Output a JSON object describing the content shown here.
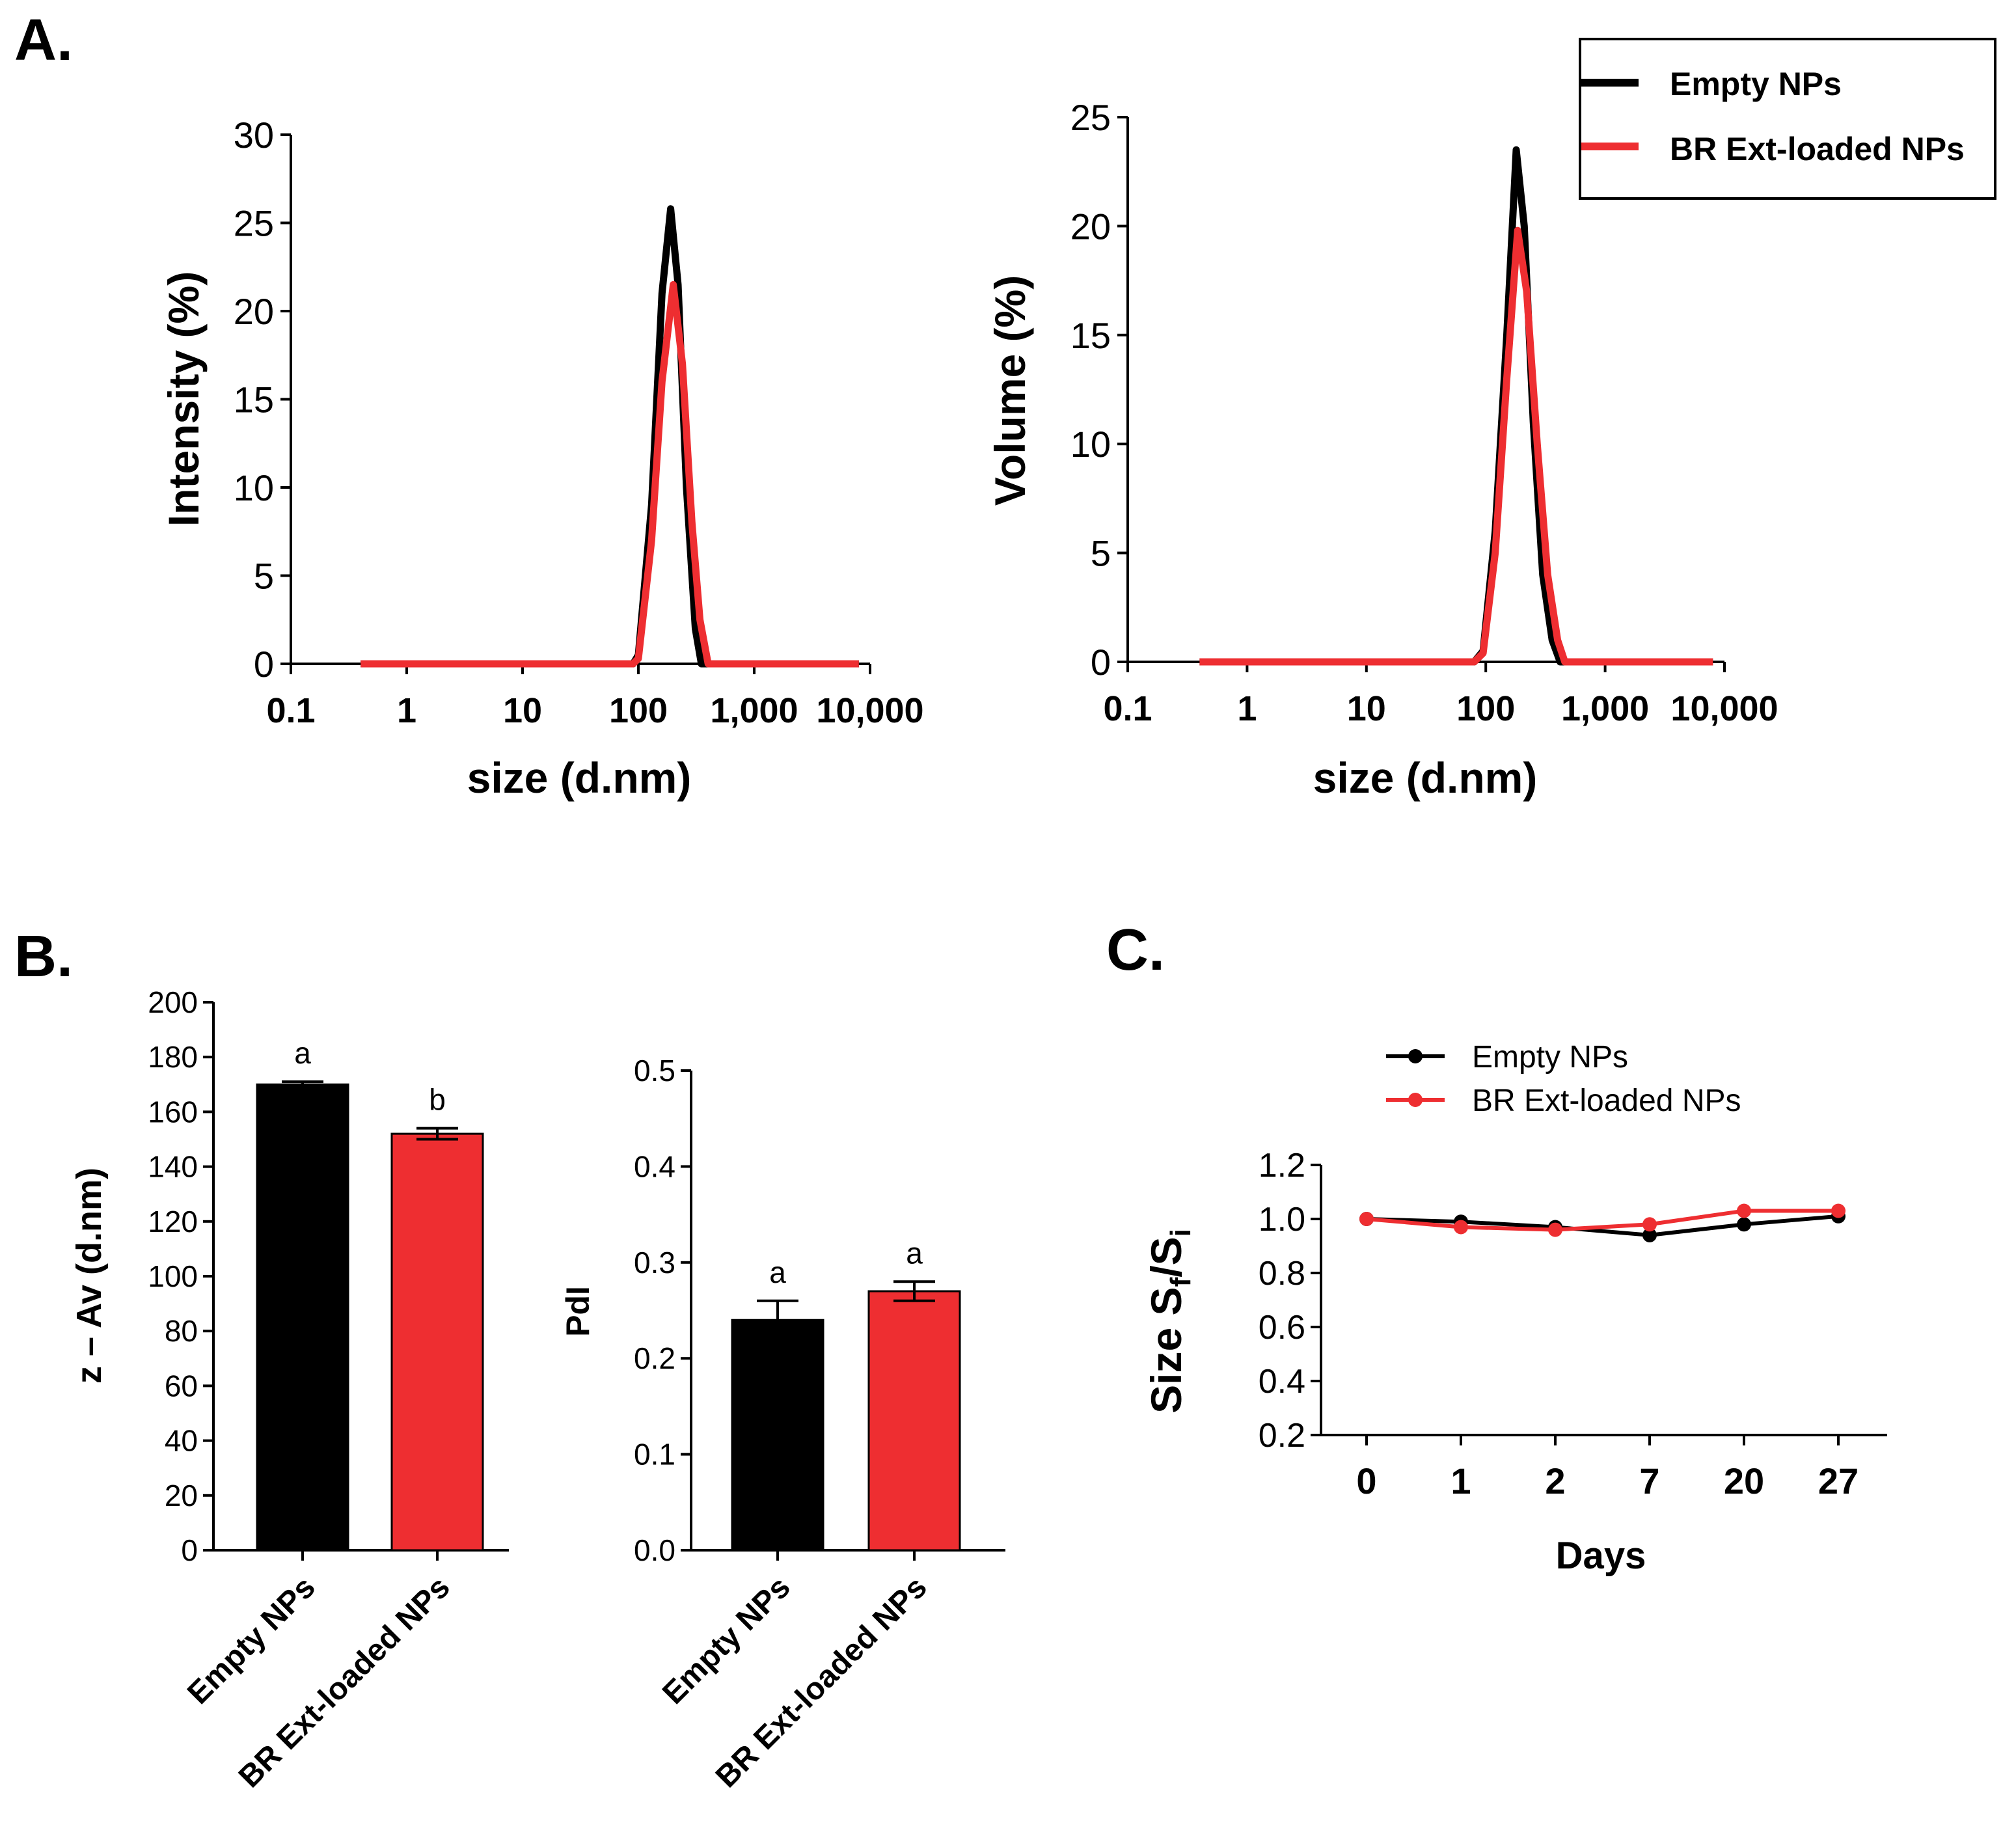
{
  "panel_labels": {
    "a": "A.",
    "b": "B.",
    "c": "C."
  },
  "colors": {
    "empty": "#000000",
    "loaded": "#ee2e31"
  },
  "legend_a": {
    "items": [
      "Empty NPs",
      "BR Ext-loaded NPs"
    ]
  },
  "legend_c": {
    "items": [
      "Empty NPs",
      "BR Ext-loaded NPs"
    ]
  },
  "chart_data": [
    {
      "id": "intensity",
      "type": "line",
      "xscale": "log",
      "xlim": [
        0.1,
        10000
      ],
      "xticks": [
        0.1,
        1,
        10,
        100,
        1000,
        10000
      ],
      "xtick_labels": [
        "0.1",
        "1",
        "10",
        "100",
        "1,000",
        "10,000"
      ],
      "ylim": [
        0,
        30
      ],
      "yticks": [
        0,
        5,
        10,
        15,
        20,
        25,
        30
      ],
      "ytick_labels": [
        "0",
        "5",
        "10",
        "15",
        "20",
        "25",
        "30"
      ],
      "xlabel": "size (d.nm)",
      "ylabel": "Intensity (%)",
      "series": [
        {
          "name": "Empty NPs",
          "color": "#000000",
          "x": [
            0.4,
            90,
            100,
            130,
            160,
            190,
            220,
            260,
            310,
            350,
            8000
          ],
          "y": [
            0,
            0,
            0.5,
            9,
            21,
            25.8,
            21.5,
            10,
            2,
            0,
            0
          ]
        },
        {
          "name": "BR Ext-loaded NPs",
          "color": "#ee2e31",
          "x": [
            0.4,
            90,
            100,
            130,
            160,
            200,
            240,
            290,
            340,
            400,
            8000
          ],
          "y": [
            0,
            0,
            0.3,
            7,
            16,
            21.5,
            17,
            8,
            2.5,
            0,
            0
          ]
        }
      ]
    },
    {
      "id": "volume",
      "type": "line",
      "xscale": "log",
      "xlim": [
        0.1,
        10000
      ],
      "xticks": [
        0.1,
        1,
        10,
        100,
        1000,
        10000
      ],
      "xtick_labels": [
        "0.1",
        "1",
        "10",
        "100",
        "1,000",
        "10,000"
      ],
      "ylim": [
        0,
        25
      ],
      "yticks": [
        0,
        5,
        10,
        15,
        20,
        25
      ],
      "ytick_labels": [
        "0",
        "5",
        "10",
        "15",
        "20",
        "25"
      ],
      "xlabel": "size (d.nm)",
      "ylabel": "Volume (%)",
      "series": [
        {
          "name": "Empty NPs",
          "color": "#000000",
          "x": [
            0.4,
            80,
            95,
            120,
            150,
            180,
            210,
            250,
            300,
            360,
            420,
            8000
          ],
          "y": [
            0,
            0,
            0.5,
            6,
            15,
            23.5,
            20,
            11,
            4,
            1,
            0,
            0
          ]
        },
        {
          "name": "BR Ext-loaded NPs",
          "color": "#ee2e31",
          "x": [
            0.4,
            80,
            95,
            120,
            150,
            185,
            220,
            270,
            330,
            400,
            460,
            8000
          ],
          "y": [
            0,
            0,
            0.4,
            5,
            13,
            19.8,
            17,
            10,
            4,
            1,
            0,
            0
          ]
        }
      ]
    },
    {
      "id": "zav",
      "type": "bar",
      "categories": [
        "Empty NPs",
        "BR Ext-loaded NPs"
      ],
      "values": [
        170,
        152
      ],
      "errors": [
        1,
        2
      ],
      "colors": [
        "#000000",
        "#ee2e31"
      ],
      "letters": [
        "a",
        "b"
      ],
      "ylim": [
        0,
        200
      ],
      "yticks": [
        0,
        20,
        40,
        60,
        80,
        100,
        120,
        140,
        160,
        180,
        200
      ],
      "ytick_labels": [
        "0",
        "20",
        "40",
        "60",
        "80",
        "100",
        "120",
        "140",
        "160",
        "180",
        "200"
      ],
      "ylabel": "z – Av (d.nm)"
    },
    {
      "id": "pdi",
      "type": "bar",
      "categories": [
        "Empty NPs",
        "BR Ext-loaded NPs"
      ],
      "values": [
        0.24,
        0.27
      ],
      "errors": [
        0.02,
        0.01
      ],
      "colors": [
        "#000000",
        "#ee2e31"
      ],
      "letters": [
        "a",
        "a"
      ],
      "ylim": [
        0,
        0.5
      ],
      "yticks": [
        0,
        0.1,
        0.2,
        0.3,
        0.4,
        0.5
      ],
      "ytick_labels": [
        "0.0",
        "0.1",
        "0.2",
        "0.3",
        "0.4",
        "0.5"
      ],
      "ylabel": "PdI"
    },
    {
      "id": "stability",
      "type": "line",
      "categories": [
        "0",
        "1",
        "2",
        "7",
        "20",
        "27"
      ],
      "ylim": [
        0.2,
        1.2
      ],
      "yticks": [
        0.2,
        0.4,
        0.6,
        0.8,
        1.0,
        1.2
      ],
      "ytick_labels": [
        "0.2",
        "0.4",
        "0.6",
        "0.8",
        "1.0",
        "1.2"
      ],
      "xlabel": "Days",
      "ylabel": {
        "prefix": "Size S",
        "sub1": "f",
        "mid": "/S",
        "sub2": "i"
      },
      "series": [
        {
          "name": "Empty NPs",
          "color": "#000000",
          "values": [
            1.0,
            0.99,
            0.97,
            0.94,
            0.98,
            1.01
          ]
        },
        {
          "name": "BR Ext-loaded NPs",
          "color": "#ee2e31",
          "values": [
            1.0,
            0.97,
            0.96,
            0.98,
            1.03,
            1.03
          ]
        }
      ]
    }
  ]
}
